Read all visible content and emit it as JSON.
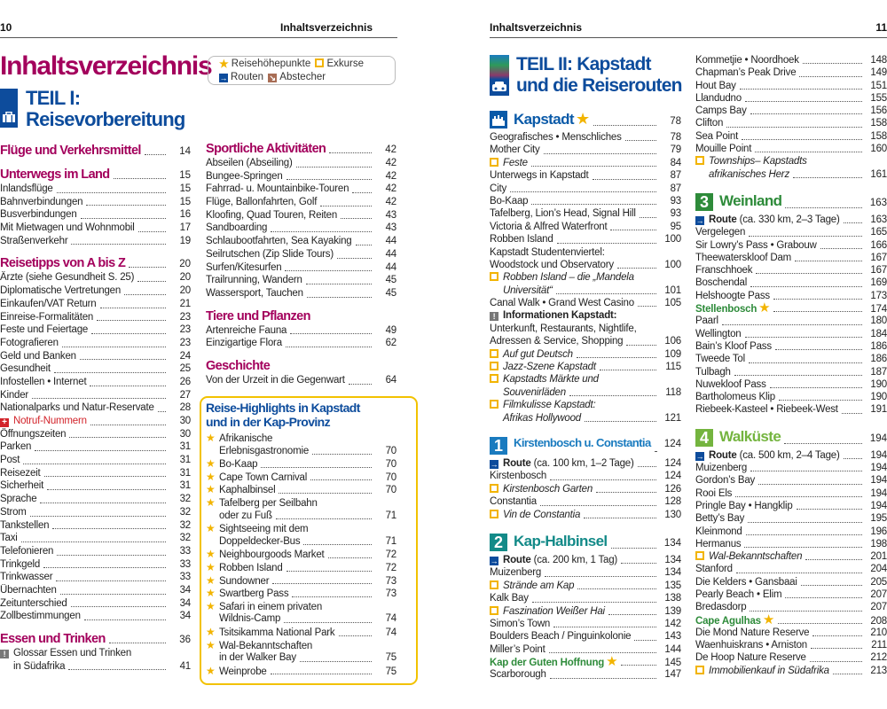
{
  "header": {
    "left_page_number": "10",
    "left_title": "Inhaltsverzeichnis",
    "right_title": "Inhaltsverzeichnis",
    "right_page_number": "11"
  },
  "title": "Inhaltsverzeichnis",
  "legend": {
    "highlights": "Reisehöhepunkte",
    "exkurse": "Exkurse",
    "routen": "Routen",
    "abstecher": "Abstecher"
  },
  "teil1": {
    "line1": "TEIL I:",
    "line2": "Reisevorbereitung",
    "icon": "suitcase-icon"
  },
  "teil2": {
    "line1": "TEIL II: Kapstadt",
    "line2": "und die Reiserouten",
    "icon": "car-icon"
  },
  "colors": {
    "magenta": "#a3005c",
    "blue": "#0d4c9c",
    "yellow": "#f2b400",
    "green": "#2e8b3a",
    "red": "#d2232a"
  },
  "left_page": {
    "col1": [
      {
        "t": "h",
        "text": "Flüge und Verkehrsmittel",
        "p": "14"
      },
      {
        "t": "h",
        "text": "Unterwegs im Land",
        "p": "15"
      },
      {
        "t": "i",
        "text": "Inlandsflüge",
        "p": "15"
      },
      {
        "t": "i",
        "text": "Bahnverbindungen",
        "p": "15"
      },
      {
        "t": "i",
        "text": "Busverbindungen",
        "p": "16"
      },
      {
        "t": "i",
        "text": "Mit Mietwagen und Wohnmobil",
        "p": "17"
      },
      {
        "t": "i",
        "text": "Straßenverkehr",
        "p": "19"
      },
      {
        "t": "h",
        "text": "Reisetipps von A bis Z",
        "p": "20"
      },
      {
        "t": "i",
        "text": "Ärzte (siehe Gesundheit S. 25)",
        "p": "20"
      },
      {
        "t": "i",
        "text": "Diplomatische Vertretungen",
        "p": "20"
      },
      {
        "t": "i",
        "text": "Einkaufen/VAT Return",
        "p": "21"
      },
      {
        "t": "i",
        "text": "Einreise-Formalitäten",
        "p": "23"
      },
      {
        "t": "i",
        "text": "Feste und Feiertage",
        "p": "23"
      },
      {
        "t": "i",
        "text": "Fotografieren",
        "p": "23"
      },
      {
        "t": "i",
        "text": "Geld und Banken",
        "p": "24"
      },
      {
        "t": "i",
        "text": "Gesundheit",
        "p": "25"
      },
      {
        "t": "i",
        "text": "Infostellen • Internet",
        "p": "26"
      },
      {
        "t": "i",
        "text": "Kinder",
        "p": "27"
      },
      {
        "t": "i",
        "text": "Nationalparks und Natur-Reservate",
        "p": "28"
      },
      {
        "t": "e",
        "text": "Notruf-Nummern",
        "p": "30"
      },
      {
        "t": "i",
        "text": "Öffnungszeiten",
        "p": "30"
      },
      {
        "t": "i",
        "text": "Parken",
        "p": "31"
      },
      {
        "t": "i",
        "text": "Post",
        "p": "31"
      },
      {
        "t": "i",
        "text": "Reisezeit",
        "p": "31"
      },
      {
        "t": "i",
        "text": "Sicherheit",
        "p": "31"
      },
      {
        "t": "i",
        "text": "Sprache",
        "p": "32"
      },
      {
        "t": "i",
        "text": "Strom",
        "p": "32"
      },
      {
        "t": "i",
        "text": "Tankstellen",
        "p": "32"
      },
      {
        "t": "i",
        "text": "Taxi",
        "p": "32"
      },
      {
        "t": "i",
        "text": "Telefonieren",
        "p": "33"
      },
      {
        "t": "i",
        "text": "Trinkgeld",
        "p": "33"
      },
      {
        "t": "i",
        "text": "Trinkwasser",
        "p": "33"
      },
      {
        "t": "i",
        "text": "Übernachten",
        "p": "34"
      },
      {
        "t": "i",
        "text": "Zeitunterschied",
        "p": "34"
      },
      {
        "t": "i",
        "text": "Zollbestimmungen",
        "p": "34"
      },
      {
        "t": "h",
        "text": "Essen und Trinken",
        "p": "36"
      },
      {
        "t": "n",
        "lines": [
          "Glossar Essen und Trinken",
          "in Südafrika"
        ],
        "p": "41"
      }
    ],
    "col2": [
      {
        "t": "h",
        "text": "Sportliche Aktivitäten",
        "p": "42"
      },
      {
        "t": "i",
        "text": "Abseilen (Abseiling)",
        "p": "42"
      },
      {
        "t": "i",
        "text": "Bungee-Springen",
        "p": "42"
      },
      {
        "t": "i",
        "text": "Fahrrad- u. Mountainbike-Touren",
        "p": "42"
      },
      {
        "t": "i",
        "text": "Flüge, Ballonfahrten, Golf",
        "p": "42"
      },
      {
        "t": "i",
        "text": "Kloofing, Quad Touren, Reiten",
        "p": "43"
      },
      {
        "t": "i",
        "text": "Sandboarding",
        "p": "43"
      },
      {
        "t": "i",
        "text": "Schlaubootfahrten, Sea Kayaking",
        "p": "44"
      },
      {
        "t": "i",
        "text": "Seilrutschen (Zip Slide Tours)",
        "p": "44"
      },
      {
        "t": "i",
        "text": "Surfen/Kitesurfen",
        "p": "44"
      },
      {
        "t": "i",
        "text": "Trailrunning, Wandern",
        "p": "45"
      },
      {
        "t": "i",
        "text": "Wassersport, Tauchen",
        "p": "45"
      },
      {
        "t": "h",
        "text": "Tiere und Pflanzen"
      },
      {
        "t": "i",
        "text": "Artenreiche Fauna",
        "p": "49"
      },
      {
        "t": "i",
        "text": "Einzigartige Flora",
        "p": "62"
      },
      {
        "t": "h",
        "text": "Geschichte"
      },
      {
        "t": "i",
        "text": "Von der Urzeit in die Gegenwart",
        "p": "64"
      }
    ],
    "highlights_box": {
      "title_line1": "Reise-Highlights in Kapstadt",
      "title_line2": "und in der Kap-Provinz",
      "items": [
        {
          "t": "s",
          "lines": [
            "Afrikanische",
            "Erlebnisgastronomie"
          ],
          "p": "70"
        },
        {
          "t": "s",
          "text": "Bo-Kaap",
          "p": "70"
        },
        {
          "t": "s",
          "text": "Cape Town Carnival",
          "p": "70"
        },
        {
          "t": "s",
          "text": "Kaphalbinsel",
          "p": "70"
        },
        {
          "t": "s",
          "lines": [
            "Tafelberg per Seilbahn",
            "oder zu Fuß"
          ],
          "p": "71"
        },
        {
          "t": "s",
          "lines": [
            "Sightseeing mit dem",
            "Doppeldecker-Bus"
          ],
          "p": "71"
        },
        {
          "t": "s",
          "text": "Neighbourgoods Market",
          "p": "72"
        },
        {
          "t": "s",
          "text": "Robben Island",
          "p": "72"
        },
        {
          "t": "s",
          "text": "Sundowner",
          "p": "73"
        },
        {
          "t": "s",
          "text": "Swartberg Pass",
          "p": "73"
        },
        {
          "t": "s",
          "lines": [
            "Safari in einem privaten",
            "Wildnis-Camp"
          ],
          "p": "74"
        },
        {
          "t": "s",
          "text": "Tsitsikamma National Park",
          "p": "74"
        },
        {
          "t": "s",
          "lines": [
            "Wal-Bekanntschaften",
            "in der Walker Bay"
          ],
          "p": "75"
        },
        {
          "t": "s",
          "text": "Weinprobe",
          "p": "75"
        }
      ]
    }
  },
  "right_page": {
    "col1": [
      {
        "t": "h",
        "text": "Kapstadt",
        "p": "78",
        "icon": "city",
        "star": true,
        "color": "#0a5aa8"
      },
      {
        "t": "i",
        "text": "Geografisches • Menschliches",
        "p": "78"
      },
      {
        "t": "i",
        "text": "Mother City",
        "p": "79"
      },
      {
        "t": "x",
        "text": "Feste",
        "p": "84"
      },
      {
        "t": "i",
        "text": "Unterwegs in Kapstadt",
        "p": "87"
      },
      {
        "t": "i",
        "text": "City",
        "p": "87"
      },
      {
        "t": "i",
        "text": "Bo-Kaap",
        "p": "93"
      },
      {
        "t": "i",
        "text": "Tafelberg, Lion’s Head, Signal Hill",
        "p": "93"
      },
      {
        "t": "i",
        "text": "Victoria & Alfred Waterfront",
        "p": "95"
      },
      {
        "t": "i",
        "text": "Robben Island",
        "p": "100"
      },
      {
        "t": "i",
        "lines": [
          "Kapstadt Studentenviertel:",
          "Woodstock und Observatory"
        ],
        "p": "100"
      },
      {
        "t": "x",
        "lines": [
          "Robben Island – die „Mandela",
          "Universität“"
        ],
        "p": "101"
      },
      {
        "t": "i",
        "text": "Canal Walk • Grand West Casino",
        "p": "105"
      },
      {
        "t": "nb",
        "lines": [
          "Informationen Kapstadt:",
          "Unterkunft, Restaurants, Nightlife,",
          "Adressen & Service, Shopping"
        ],
        "p": "106"
      },
      {
        "t": "x",
        "text": "Auf gut Deutsch",
        "p": "109"
      },
      {
        "t": "x",
        "text": "Jazz-Szene Kapstadt",
        "p": "115"
      },
      {
        "t": "x",
        "lines": [
          "Kapstadts Märkte und",
          "Souvenirläden"
        ],
        "p": "118"
      },
      {
        "t": "x",
        "lines": [
          "Filmkulisse Kapstadt:",
          "Afrikas Hollywood"
        ],
        "p": "121"
      },
      {
        "t": "h",
        "text": "Kirstenbosch u. Constantia",
        "p": "124",
        "badge": "1",
        "color": "#1a7bbf"
      },
      {
        "t": "r",
        "label": "Route",
        "text": "(ca. 100 km, 1–2 Tage)",
        "p": "124"
      },
      {
        "t": "i",
        "text": "Kirstenbosch",
        "p": "124"
      },
      {
        "t": "x",
        "text": "Kirstenbosch Garten",
        "p": "126"
      },
      {
        "t": "i",
        "text": "Constantia",
        "p": "128"
      },
      {
        "t": "x",
        "text": "Vin de Constantia",
        "p": "130"
      },
      {
        "t": "h",
        "text": "Kap-Halbinsel",
        "p": "134",
        "badge": "2",
        "color": "#138a88"
      },
      {
        "t": "r",
        "label": "Route",
        "text": "(ca. 200 km, 1 Tag)",
        "p": "134"
      },
      {
        "t": "i",
        "text": "Muizenberg",
        "p": "134"
      },
      {
        "t": "x",
        "text": "Strände am Kap",
        "p": "135"
      },
      {
        "t": "i",
        "text": "Kalk Bay",
        "p": "138"
      },
      {
        "t": "x",
        "text": "Faszination Weißer Hai",
        "p": "139"
      },
      {
        "t": "i",
        "text": "Simon’s Town",
        "p": "142"
      },
      {
        "t": "i",
        "text": "Boulders Beach / Pinguinkolonie",
        "p": "143"
      },
      {
        "t": "i",
        "text": "Miller’s Point",
        "p": "144"
      },
      {
        "t": "g",
        "text": "Kap der Guten Hoffnung",
        "p": "145"
      },
      {
        "t": "i",
        "text": "Scarborough",
        "p": "147"
      }
    ],
    "col2": [
      {
        "t": "i",
        "text": "Kommetjie • Noordhoek",
        "p": "148"
      },
      {
        "t": "i",
        "text": "Chapman’s Peak Drive",
        "p": "149"
      },
      {
        "t": "i",
        "text": "Hout Bay",
        "p": "151"
      },
      {
        "t": "i",
        "text": "Llandudno",
        "p": "155"
      },
      {
        "t": "i",
        "text": "Camps Bay",
        "p": "156"
      },
      {
        "t": "i",
        "text": "Clifton",
        "p": "158"
      },
      {
        "t": "i",
        "text": "Sea Point",
        "p": "158"
      },
      {
        "t": "i",
        "text": "Mouille Point",
        "p": "160"
      },
      {
        "t": "x",
        "lines": [
          "Townships– Kapstadts",
          "afrikanisches Herz"
        ],
        "p": "161"
      },
      {
        "t": "h",
        "text": "Weinland",
        "p": "163",
        "badge": "3",
        "color": "#2e8b3a"
      },
      {
        "t": "r",
        "label": "Route",
        "text": "(ca. 330 km, 2–3 Tage)",
        "p": "163"
      },
      {
        "t": "i",
        "text": "Vergelegen",
        "p": "165"
      },
      {
        "t": "i",
        "text": "Sir Lowry’s Pass • Grabouw",
        "p": "166"
      },
      {
        "t": "i",
        "text": "Theewaterskloof Dam",
        "p": "167"
      },
      {
        "t": "i",
        "text": "Franschhoek",
        "p": "167"
      },
      {
        "t": "i",
        "text": "Boschendal",
        "p": "169"
      },
      {
        "t": "i",
        "text": "Helshoogte Pass",
        "p": "173"
      },
      {
        "t": "g",
        "text": "Stellenbosch",
        "p": "174"
      },
      {
        "t": "i",
        "text": "Paarl",
        "p": "180"
      },
      {
        "t": "i",
        "text": "Wellington",
        "p": "184"
      },
      {
        "t": "i",
        "text": "Bain’s Kloof Pass",
        "p": "186"
      },
      {
        "t": "i",
        "text": "Tweede Tol",
        "p": "186"
      },
      {
        "t": "i",
        "text": "Tulbagh",
        "p": "187"
      },
      {
        "t": "i",
        "text": "Nuwekloof Pass",
        "p": "190"
      },
      {
        "t": "i",
        "text": "Bartholomeus Klip",
        "p": "190"
      },
      {
        "t": "i",
        "text": "Riebeek-Kasteel • Riebeek-West",
        "p": "191"
      },
      {
        "t": "h",
        "text": "Walküste",
        "p": "194",
        "badge": "4",
        "color": "#74b43f"
      },
      {
        "t": "r",
        "label": "Route",
        "text": "(ca. 500 km, 2–4 Tage)",
        "p": "194"
      },
      {
        "t": "i",
        "text": "Muizenberg",
        "p": "194"
      },
      {
        "t": "i",
        "text": "Gordon’s Bay",
        "p": "194"
      },
      {
        "t": "i",
        "text": "Rooi Els",
        "p": "194"
      },
      {
        "t": "i",
        "text": "Pringle Bay • Hangklip",
        "p": "194"
      },
      {
        "t": "i",
        "text": "Betty’s Bay",
        "p": "195"
      },
      {
        "t": "i",
        "text": "Kleinmond",
        "p": "196"
      },
      {
        "t": "i",
        "text": "Hermanus",
        "p": "198"
      },
      {
        "t": "x",
        "text": "Wal-Bekanntschaften",
        "p": "201"
      },
      {
        "t": "i",
        "text": "Stanford",
        "p": "204"
      },
      {
        "t": "i",
        "text": "Die Kelders • Gansbaai",
        "p": "205"
      },
      {
        "t": "i",
        "text": "Pearly Beach • Elim",
        "p": "207"
      },
      {
        "t": "i",
        "text": "Bredasdorp",
        "p": "207"
      },
      {
        "t": "g",
        "text": "Cape Agulhas",
        "p": "208"
      },
      {
        "t": "i",
        "text": "Die Mond Nature Reserve",
        "p": "210"
      },
      {
        "t": "i",
        "text": "Waenhuiskrans • Arniston",
        "p": "211"
      },
      {
        "t": "i",
        "text": "De Hoop Nature Reserve",
        "p": "212"
      },
      {
        "t": "x",
        "text": "Immobilienkauf in Südafrika",
        "p": "213"
      }
    ]
  }
}
